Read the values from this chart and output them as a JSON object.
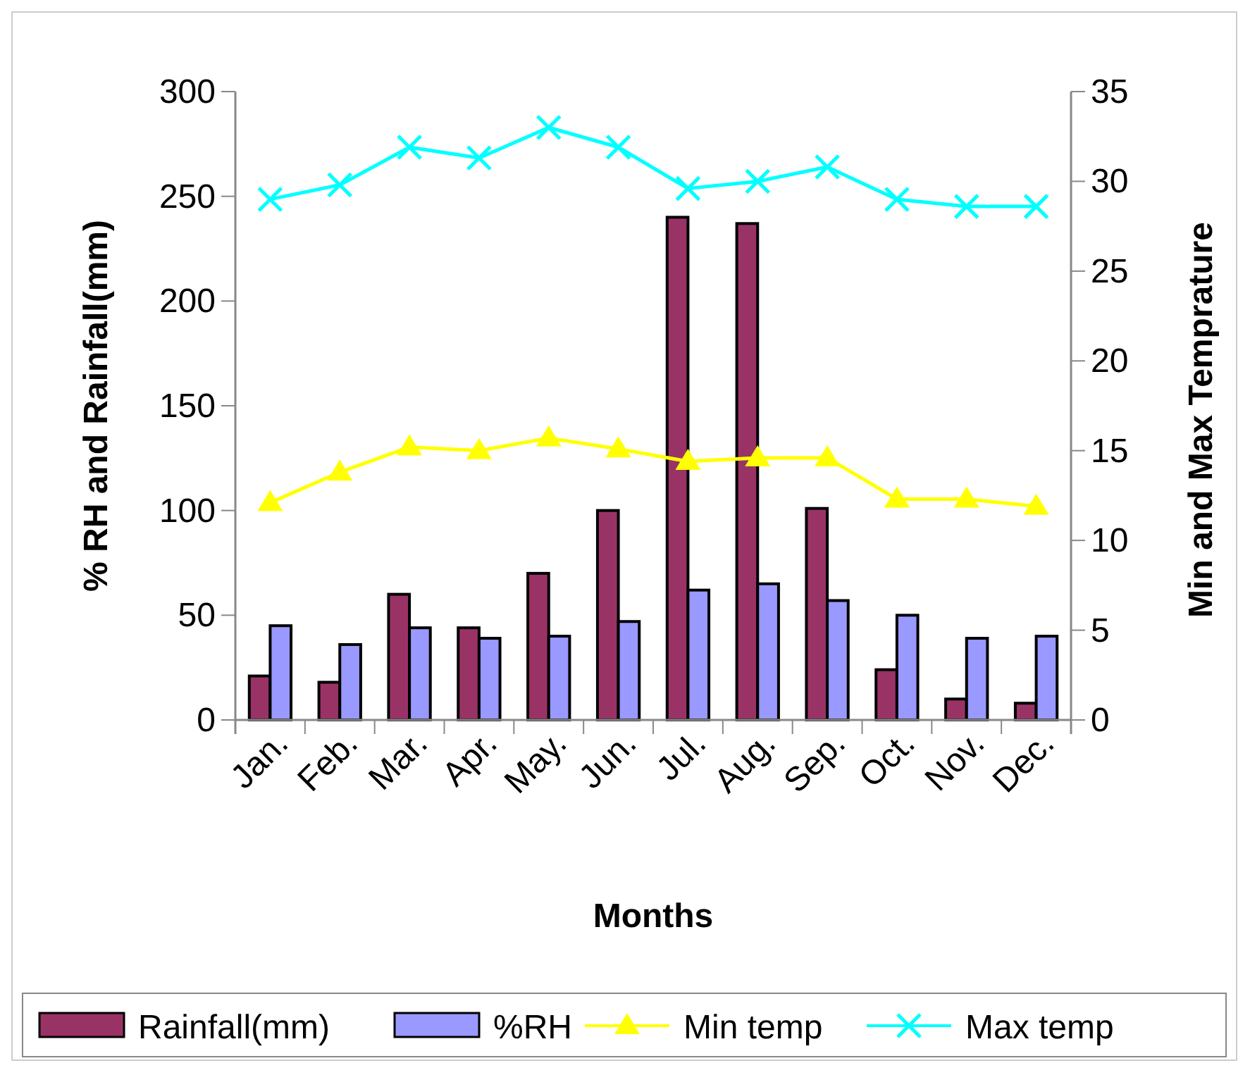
{
  "chart_data": {
    "type": "bar",
    "xlabel": "Months",
    "ylabel": "% RH and Rainfall(mm)",
    "y2label": "Min and Max Temprature",
    "categories": [
      "Jan.",
      "Feb.",
      "Mar.",
      "Apr.",
      "May.",
      "Jun.",
      "Jul.",
      "Aug.",
      "Sep.",
      "Oct.",
      "Nov.",
      "Dec."
    ],
    "series": [
      {
        "name": "Rainfall(mm)",
        "color": "#993366",
        "values": [
          21,
          18,
          60,
          44,
          70,
          100,
          240,
          237,
          101,
          24,
          10,
          8
        ]
      },
      {
        "name": "%RH",
        "color": "#9999ff",
        "values": [
          45,
          36,
          44,
          39,
          40,
          47,
          62,
          65,
          57,
          50,
          39,
          40
        ]
      },
      {
        "name": "Min temp",
        "type": "line",
        "axis": "y2",
        "marker": "triangle",
        "color": "#ffff00",
        "values": [
          12.1,
          13.8,
          15.2,
          15.0,
          15.7,
          15.1,
          14.4,
          14.6,
          14.6,
          12.3,
          12.3,
          11.9
        ]
      },
      {
        "name": "Max temp",
        "type": "line",
        "axis": "y2",
        "marker": "cross",
        "color": "#00ffff",
        "values": [
          29.0,
          29.8,
          31.9,
          31.3,
          33.0,
          31.9,
          29.6,
          30.0,
          30.8,
          29.0,
          28.6,
          28.6
        ]
      }
    ],
    "ylim": [
      0,
      300
    ],
    "yticks": [
      0,
      50,
      100,
      150,
      200,
      250,
      300
    ],
    "y2lim": [
      0,
      35
    ],
    "y2ticks": [
      0,
      5,
      10,
      15,
      20,
      25,
      30,
      35
    ],
    "grid": false,
    "legend": "bottom"
  }
}
